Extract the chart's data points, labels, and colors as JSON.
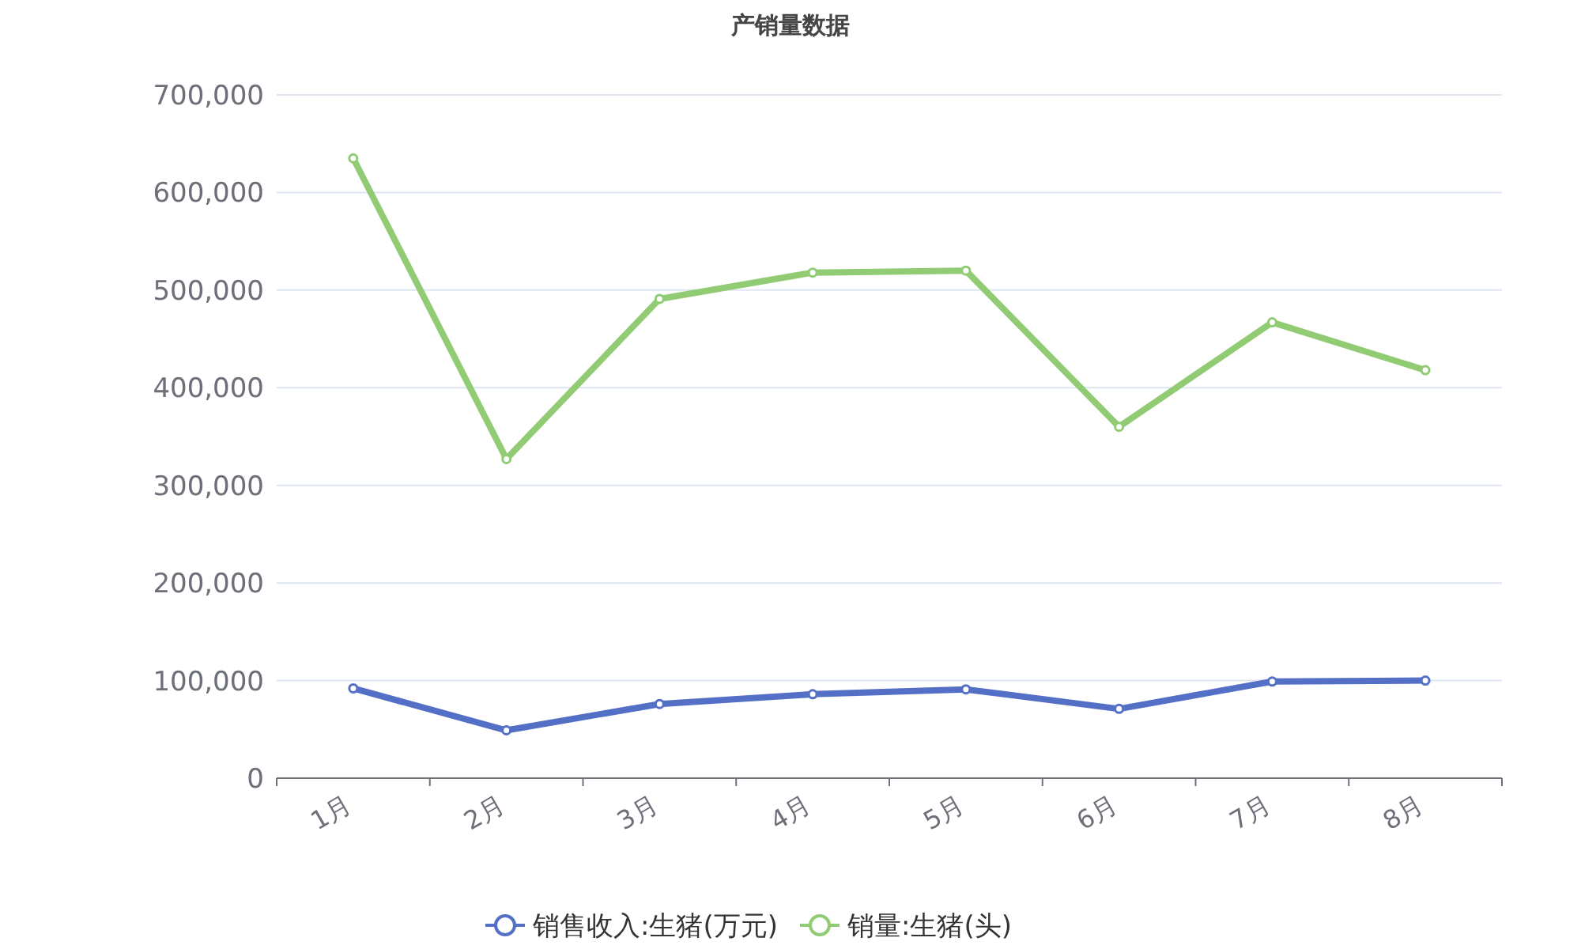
{
  "chart_data": {
    "type": "line",
    "title": "产销量数据",
    "categories": [
      "1月",
      "2月",
      "3月",
      "4月",
      "5月",
      "6月",
      "7月",
      "8月"
    ],
    "series": [
      {
        "name": "销售收入:生猪(万元)",
        "color": "#5470c6",
        "values": [
          92000,
          49000,
          76000,
          86000,
          91000,
          71000,
          99000,
          100000
        ]
      },
      {
        "name": "销量:生猪(头)",
        "color": "#91cc75",
        "values": [
          635000,
          327000,
          491000,
          518000,
          520000,
          360000,
          467000,
          418000
        ]
      }
    ],
    "ylim": [
      0,
      700000
    ],
    "yticks": [
      0,
      {
        "value": 100000,
        "label": "100,000"
      },
      {
        "value": 200000,
        "label": "200,000"
      },
      {
        "value": 300000,
        "label": "300,000"
      },
      {
        "value": 400000,
        "label": "400,000"
      },
      {
        "value": 500000,
        "label": "500,000"
      },
      {
        "value": 600000,
        "label": "600,000"
      },
      {
        "value": 700000,
        "label": "700,000"
      }
    ],
    "grid": "y",
    "legend": "bottom",
    "marker": "circle",
    "line_style": "solid"
  }
}
